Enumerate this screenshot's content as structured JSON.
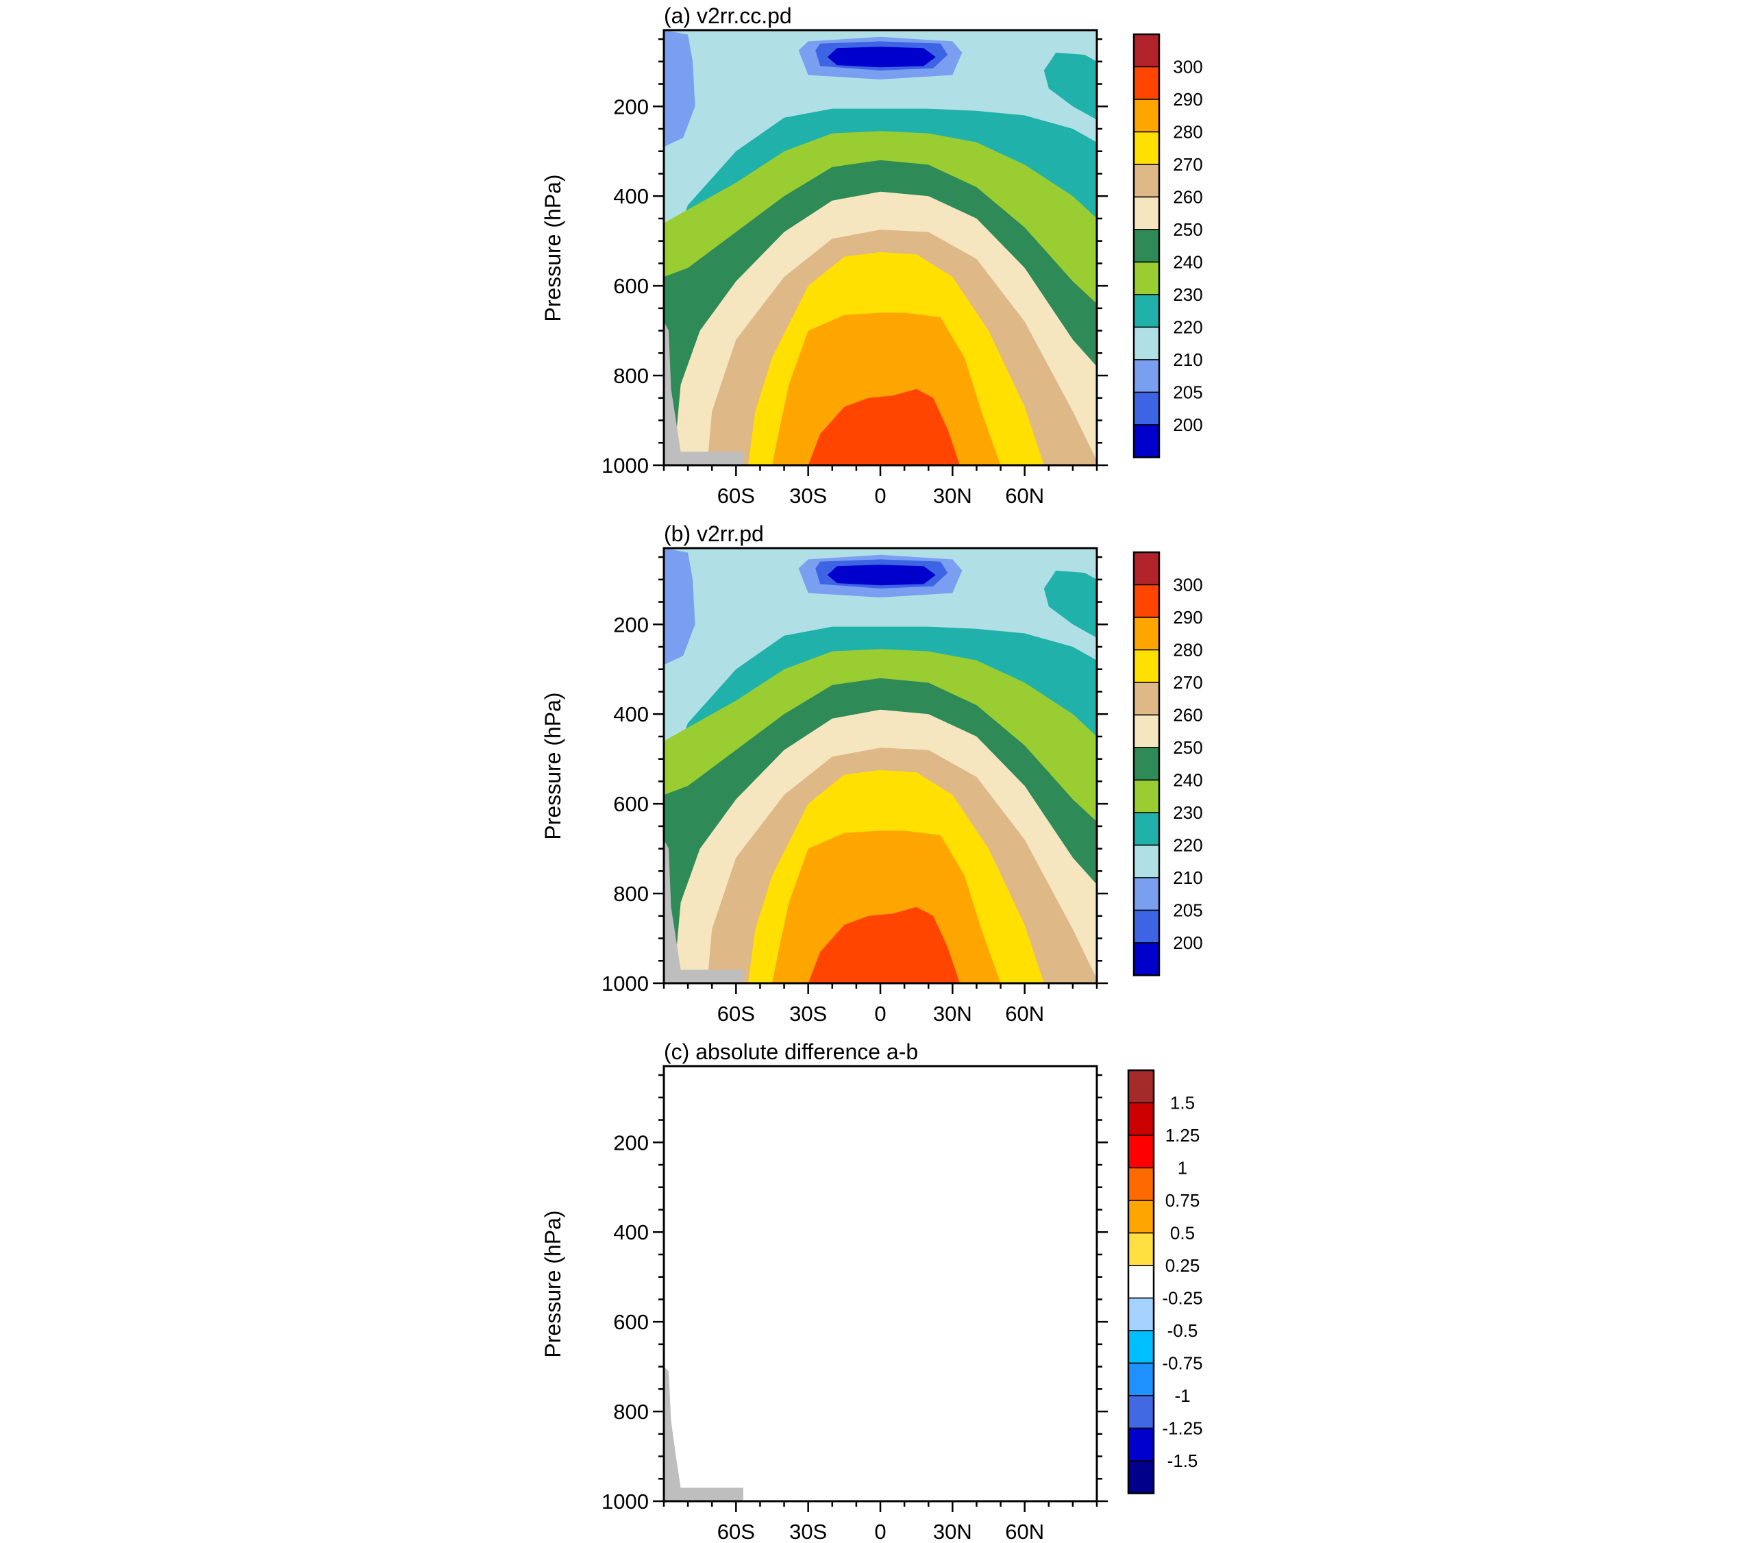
{
  "figure": {
    "panels": [
      {
        "id": "a",
        "title": "(a) v2rr.cc.pd"
      },
      {
        "id": "b",
        "title": "(b) v2rr.pd"
      },
      {
        "id": "c",
        "title": "(c) absolute difference a-b"
      }
    ]
  },
  "chart_data": [
    {
      "type": "heatmap",
      "title": "(a) v2rr.cc.pd",
      "ylabel": "Pressure (hPa)",
      "xlabel": "",
      "x_ticks": [
        "60S",
        "30S",
        "0",
        "30N",
        "60N"
      ],
      "x_tick_values": [
        -60,
        -30,
        0,
        30,
        60
      ],
      "xlim": [
        -90,
        90
      ],
      "y_ticks": [
        "200",
        "400",
        "600",
        "800",
        "1000"
      ],
      "y_tick_values": [
        200,
        400,
        600,
        800,
        1000
      ],
      "ylim": [
        1000,
        30
      ],
      "colorbar_labels": [
        "300",
        "290",
        "280",
        "270",
        "260",
        "250",
        "240",
        "230",
        "220",
        "210",
        "205",
        "200"
      ],
      "colorbar_colors": [
        "#b2222a",
        "#ff4500",
        "#ffa500",
        "#ffe000",
        "#deb887",
        "#f5e6c0",
        "#2e8b57",
        "#9acd32",
        "#20b2aa",
        "#b0e0e6",
        "#7b9ff0",
        "#3c64e4",
        "#0000cd"
      ],
      "missing_color": "#bebebe"
    },
    {
      "type": "heatmap",
      "title": "(b) v2rr.pd",
      "ylabel": "Pressure (hPa)",
      "xlabel": "",
      "x_ticks": [
        "60S",
        "30S",
        "0",
        "30N",
        "60N"
      ],
      "x_tick_values": [
        -60,
        -30,
        0,
        30,
        60
      ],
      "xlim": [
        -90,
        90
      ],
      "y_ticks": [
        "200",
        "400",
        "600",
        "800",
        "1000"
      ],
      "y_tick_values": [
        200,
        400,
        600,
        800,
        1000
      ],
      "ylim": [
        1000,
        30
      ],
      "colorbar_labels": [
        "300",
        "290",
        "280",
        "270",
        "260",
        "250",
        "240",
        "230",
        "220",
        "210",
        "205",
        "200"
      ],
      "colorbar_colors": [
        "#b2222a",
        "#ff4500",
        "#ffa500",
        "#ffe000",
        "#deb887",
        "#f5e6c0",
        "#2e8b57",
        "#9acd32",
        "#20b2aa",
        "#b0e0e6",
        "#7b9ff0",
        "#3c64e4",
        "#0000cd"
      ],
      "missing_color": "#bebebe"
    },
    {
      "type": "heatmap",
      "title": "(c) absolute difference a-b",
      "ylabel": "Pressure (hPa)",
      "xlabel": "",
      "x_ticks": [
        "60S",
        "30S",
        "0",
        "30N",
        "60N"
      ],
      "x_tick_values": [
        -60,
        -30,
        0,
        30,
        60
      ],
      "xlim": [
        -90,
        90
      ],
      "y_ticks": [
        "200",
        "400",
        "600",
        "800",
        "1000"
      ],
      "y_tick_values": [
        200,
        400,
        600,
        800,
        1000
      ],
      "ylim": [
        1000,
        30
      ],
      "colorbar_labels": [
        "1.5",
        "1.25",
        "1",
        "0.75",
        "0.5",
        "0.25",
        "-0.25",
        "-0.5",
        "-0.75",
        "-1",
        "-1.25",
        "-1.5"
      ],
      "colorbar_colors": [
        "#a52a2a",
        "#cc0000",
        "#ff0000",
        "#ff6a00",
        "#ffa500",
        "#ffe040",
        "#ffffff",
        "#a6d2ff",
        "#00bfff",
        "#1e90ff",
        "#4169e1",
        "#0000cd",
        "#00008b"
      ],
      "missing_color": "#bebebe"
    }
  ]
}
